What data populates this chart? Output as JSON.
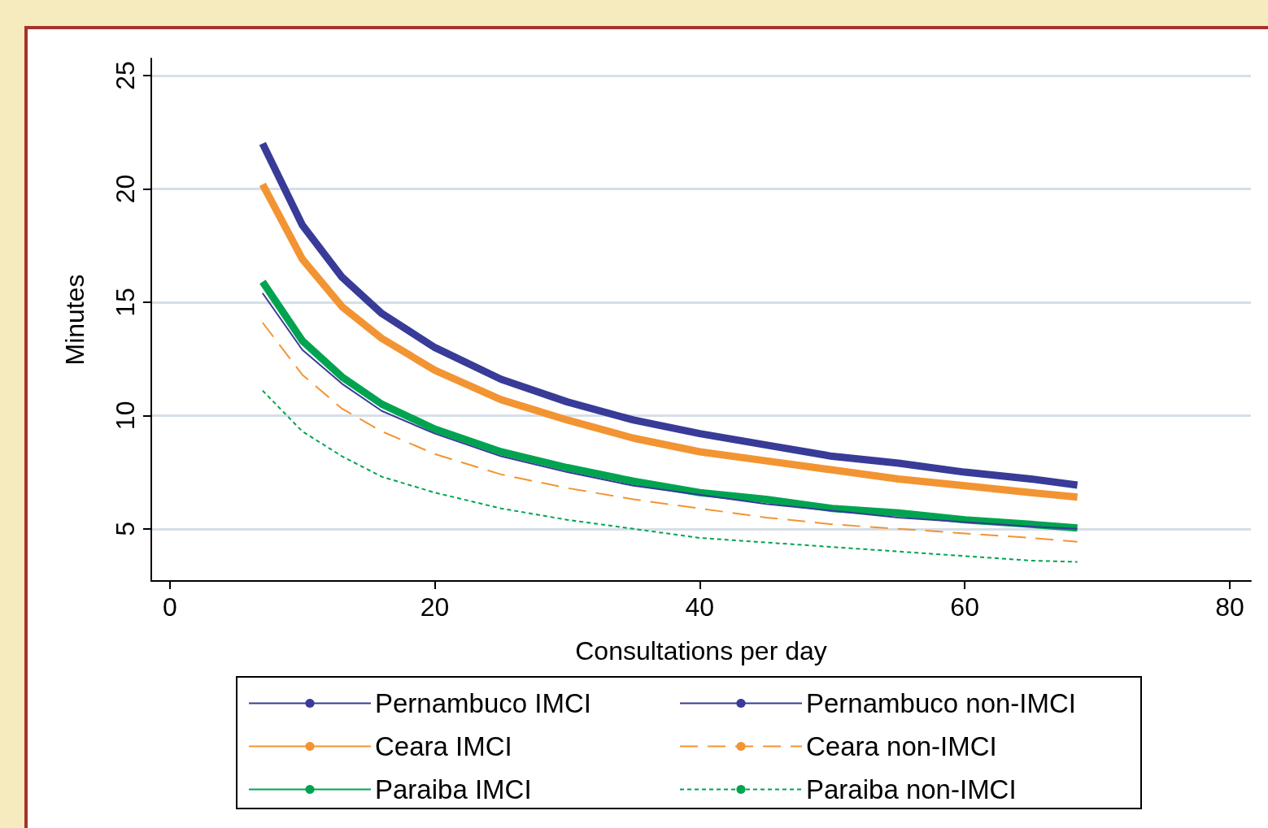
{
  "chart_data": {
    "type": "line",
    "xlabel": "Consultations per day",
    "ylabel": "Minutes",
    "xlim": [
      -1.4,
      81.6
    ],
    "xticks": [
      0,
      20,
      40,
      60,
      80
    ],
    "ylim": [
      2.7,
      25.75
    ],
    "yticks": [
      5,
      10,
      15,
      20,
      25
    ],
    "grid": "y",
    "legend": "bottom",
    "marker": "none",
    "x": [
      7,
      10,
      13,
      16,
      20,
      25,
      30,
      35,
      40,
      45,
      50,
      55,
      60,
      65,
      68.5
    ],
    "series": [
      {
        "name": "Pernambuco IMCI",
        "color": "#383b97",
        "line_style": "solid",
        "values": [
          22,
          18.4,
          16.1,
          14.5,
          13.0,
          11.6,
          10.6,
          9.8,
          9.2,
          8.7,
          8.2,
          7.9,
          7.5,
          7.2,
          6.93
        ]
      },
      {
        "name": "Ceara IMCI",
        "color": "#f39432",
        "line_style": "solid",
        "values": [
          20.2,
          16.9,
          14.8,
          13.4,
          12.0,
          10.7,
          9.8,
          9.0,
          8.4,
          8.0,
          7.6,
          7.2,
          6.9,
          6.6,
          6.4
        ]
      },
      {
        "name": "Paraiba IMCI",
        "color": "#00a450",
        "line_style": "solid",
        "values": [
          15.9,
          13.3,
          11.7,
          10.5,
          9.4,
          8.4,
          7.7,
          7.1,
          6.6,
          6.3,
          5.9,
          5.7,
          5.4,
          5.2,
          5.04
        ]
      },
      {
        "name": "Pernambuco non-IMCI",
        "color": "#383b97",
        "line_style": "solid",
        "values": [
          15.4,
          12.9,
          11.4,
          10.2,
          9.2,
          8.2,
          7.5,
          6.9,
          6.5,
          6.1,
          5.8,
          5.5,
          5.3,
          5.1,
          5.0
        ]
      },
      {
        "name": "Ceara non-IMCI",
        "color": "#f39432",
        "line_style": "dashed",
        "values": [
          14.1,
          11.8,
          10.3,
          9.3,
          8.3,
          7.4,
          6.8,
          6.3,
          5.9,
          5.5,
          5.2,
          5.0,
          4.8,
          4.6,
          4.43
        ]
      },
      {
        "name": "Paraiba non-IMCI",
        "color": "#00a450",
        "line_style": "dotted",
        "values": [
          11.1,
          9.3,
          8.2,
          7.3,
          6.6,
          5.9,
          5.4,
          5.0,
          4.6,
          4.4,
          4.2,
          4.0,
          3.8,
          3.6,
          3.54
        ]
      }
    ]
  }
}
